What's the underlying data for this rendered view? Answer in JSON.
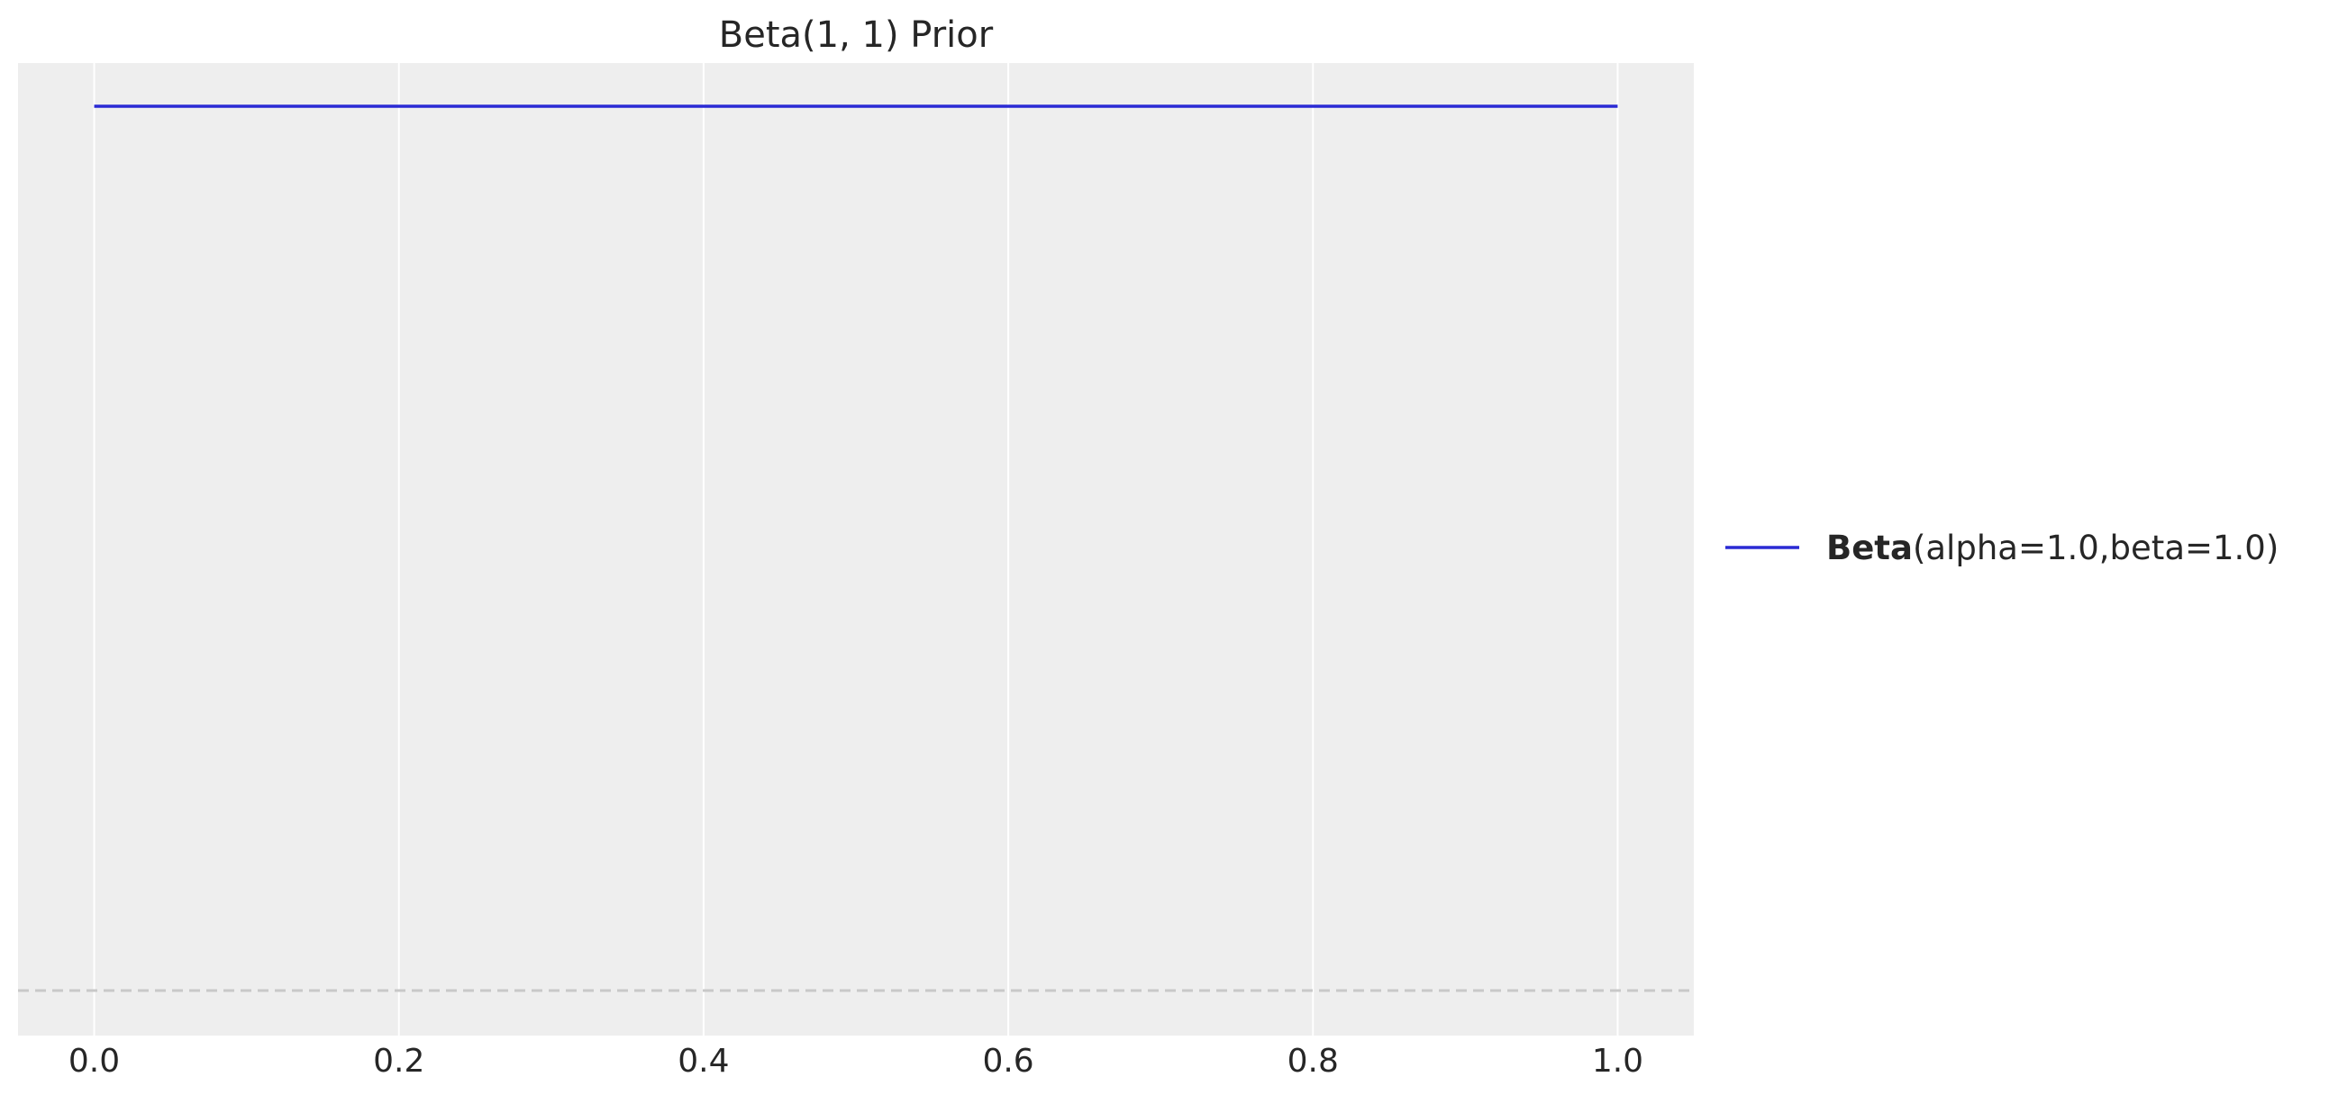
{
  "chart_data": {
    "type": "line",
    "title": "Beta(1, 1) Prior",
    "xlabel": "",
    "ylabel": "",
    "xlim": [
      -0.05,
      1.05
    ],
    "x_ticks": [
      "0.0",
      "0.2",
      "0.4",
      "0.6",
      "0.8",
      "1.0"
    ],
    "x_tick_values": [
      0.0,
      0.2,
      0.4,
      0.6,
      0.8,
      1.0
    ],
    "y_ticks_visible": false,
    "grid": "vertical",
    "baseline": {
      "y": 0,
      "style": "dashed"
    },
    "legend_position": "center-right",
    "series": [
      {
        "name_bold": "Beta",
        "name_rest": "(alpha=1.0,beta=1.0)",
        "color": "#2a2ad4",
        "x": [
          0.0,
          1.0
        ],
        "y": [
          1.0,
          1.0
        ]
      }
    ]
  },
  "colors": {
    "plot_background": "#eeeeee",
    "grid": "#ffffff",
    "baseline": "#c8c8c8",
    "text": "#262626"
  }
}
